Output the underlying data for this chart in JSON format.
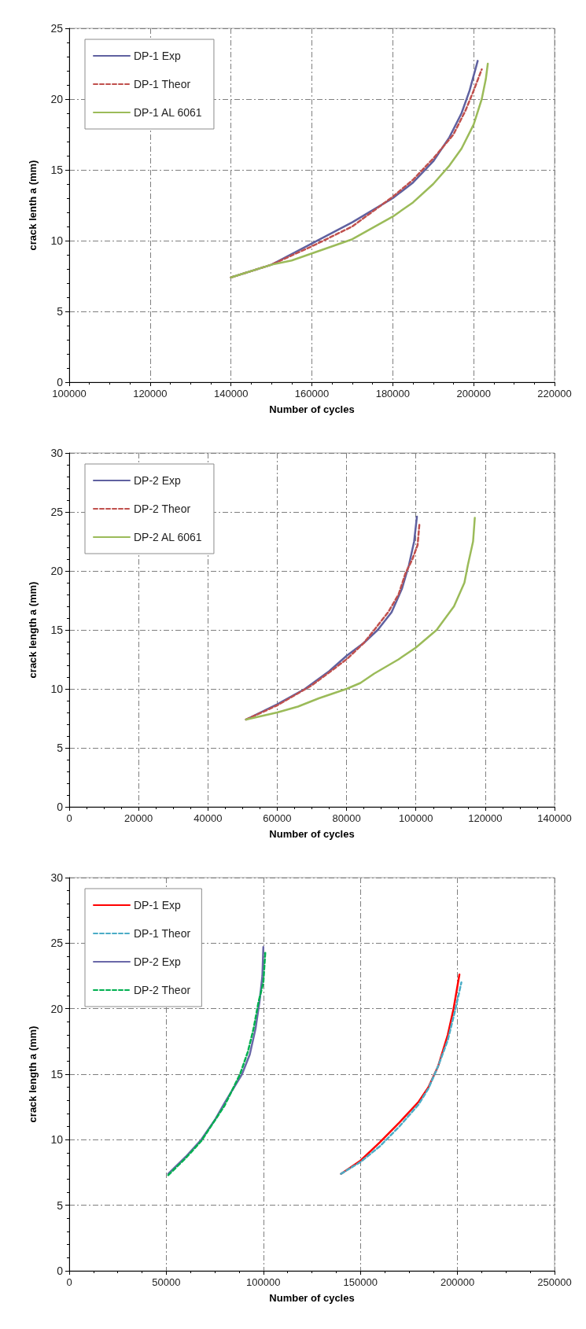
{
  "chart_data": [
    {
      "type": "line",
      "xlabel": "Number of cycles",
      "ylabel": "crack lenth a (mm)",
      "xlim": [
        100000,
        220000
      ],
      "xticks": [
        100000,
        120000,
        140000,
        160000,
        180000,
        200000,
        220000
      ],
      "ylim": [
        0,
        25
      ],
      "yticks": [
        0,
        5,
        10,
        15,
        20,
        25
      ],
      "grid": true,
      "legend": "top left",
      "series": [
        {
          "name": "DP-1 Exp",
          "color": "#5f61a0",
          "line_style": "solid",
          "x": [
            140000,
            150000,
            160000,
            170000,
            180000,
            185000,
            190000,
            194000,
            197000,
            199000,
            201000
          ],
          "values": [
            7.4,
            8.3,
            9.8,
            11.3,
            13.0,
            14.1,
            15.6,
            17.3,
            19.0,
            20.6,
            22.7
          ]
        },
        {
          "name": "DP-1 Theor",
          "color": "#c0504d",
          "line_style": "dashed",
          "x": [
            140000,
            150000,
            160000,
            170000,
            180000,
            185000,
            190000,
            195000,
            198000,
            200000,
            202000
          ],
          "values": [
            7.4,
            8.3,
            9.6,
            11.0,
            13.1,
            14.3,
            15.8,
            17.5,
            19.2,
            20.6,
            22.1
          ]
        },
        {
          "name": "DP-1 AL 6061",
          "color": "#9bbb59",
          "line_style": "solid",
          "x": [
            140000,
            150000,
            155000,
            160000,
            170000,
            180000,
            185000,
            190000,
            194000,
            197000,
            200000,
            202000,
            203000,
            203500
          ],
          "values": [
            7.4,
            8.3,
            8.6,
            9.1,
            10.1,
            11.7,
            12.7,
            14.0,
            15.3,
            16.5,
            18.2,
            20.0,
            21.4,
            22.5
          ]
        }
      ]
    },
    {
      "type": "line",
      "xlabel": "Number of cycles",
      "ylabel": "crack length a (mm)",
      "xlim": [
        0,
        140000
      ],
      "xticks": [
        0,
        20000,
        40000,
        60000,
        80000,
        100000,
        120000,
        140000
      ],
      "ylim": [
        0,
        30
      ],
      "yticks": [
        0,
        5,
        10,
        15,
        20,
        25,
        30
      ],
      "grid": true,
      "legend": "top left",
      "series": [
        {
          "name": "DP-2 Exp",
          "color": "#5f61a0",
          "line_style": "solid",
          "x": [
            51000,
            60000,
            68000,
            75000,
            80000,
            85000,
            89000,
            93000,
            96000,
            98000,
            99500,
            100300
          ],
          "values": [
            7.4,
            8.7,
            10.0,
            11.5,
            12.8,
            13.9,
            15.0,
            16.5,
            18.5,
            20.5,
            22.5,
            24.6
          ]
        },
        {
          "name": "DP-2 Theor",
          "color": "#c0504d",
          "line_style": "dashed",
          "x": [
            51000,
            60000,
            70000,
            80000,
            85000,
            88000,
            92000,
            95000,
            97000,
            99000,
            100500,
            101000
          ],
          "values": [
            7.4,
            8.6,
            10.3,
            12.5,
            13.9,
            15.0,
            16.5,
            18.0,
            19.8,
            21.0,
            22.2,
            23.9
          ]
        },
        {
          "name": "DP-2 AL 6061",
          "color": "#9bbb59",
          "line_style": "solid",
          "x": [
            51000,
            60000,
            66000,
            72000,
            80000,
            84000,
            88000,
            95000,
            100000,
            106000,
            111000,
            114000,
            115000,
            116500,
            117000
          ],
          "values": [
            7.4,
            8.0,
            8.5,
            9.2,
            10.0,
            10.5,
            11.3,
            12.5,
            13.5,
            15.0,
            17.0,
            19.0,
            20.5,
            22.5,
            24.5
          ]
        }
      ]
    },
    {
      "type": "line",
      "xlabel": "Number of cycles",
      "ylabel": "crack length a (mm)",
      "xlim": [
        0,
        250000
      ],
      "xticks": [
        0,
        50000,
        100000,
        150000,
        200000,
        250000
      ],
      "ylim": [
        0,
        30
      ],
      "yticks": [
        0,
        5,
        10,
        15,
        20,
        25,
        30
      ],
      "grid": true,
      "legend": "top left",
      "series": [
        {
          "name": "DP-1 Exp",
          "color": "#ff0000",
          "line_style": "solid",
          "x": [
            140000,
            150000,
            160000,
            170000,
            180000,
            185000,
            190000,
            195000,
            198000,
            201000
          ],
          "values": [
            7.4,
            8.4,
            9.8,
            11.3,
            12.9,
            14.0,
            15.6,
            18.0,
            20.0,
            22.6
          ]
        },
        {
          "name": "DP-1 Theor",
          "color": "#4bacc6",
          "line_style": "dashed",
          "x": [
            140000,
            150000,
            160000,
            170000,
            180000,
            185000,
            190000,
            195000,
            199000,
            202000
          ],
          "values": [
            7.4,
            8.3,
            9.5,
            11.0,
            12.7,
            13.9,
            15.6,
            17.6,
            20.0,
            22.0
          ]
        },
        {
          "name": "DP-2 Exp",
          "color": "#6a68a8",
          "line_style": "solid",
          "x": [
            51000,
            60000,
            68000,
            75000,
            80000,
            89000,
            93000,
            96000,
            98000,
            99500,
            100000
          ],
          "values": [
            7.4,
            8.7,
            10.0,
            11.5,
            12.8,
            15.0,
            16.5,
            18.5,
            20.5,
            22.5,
            24.7
          ]
        },
        {
          "name": "DP-2 Theor",
          "color": "#00b050",
          "line_style": "dashed",
          "x": [
            51000,
            60000,
            68000,
            80000,
            88000,
            92000,
            95000,
            97500,
            100000,
            101000
          ],
          "values": [
            7.3,
            8.6,
            9.9,
            12.6,
            15.0,
            16.7,
            18.5,
            20.5,
            22.0,
            24.3
          ]
        }
      ]
    }
  ]
}
